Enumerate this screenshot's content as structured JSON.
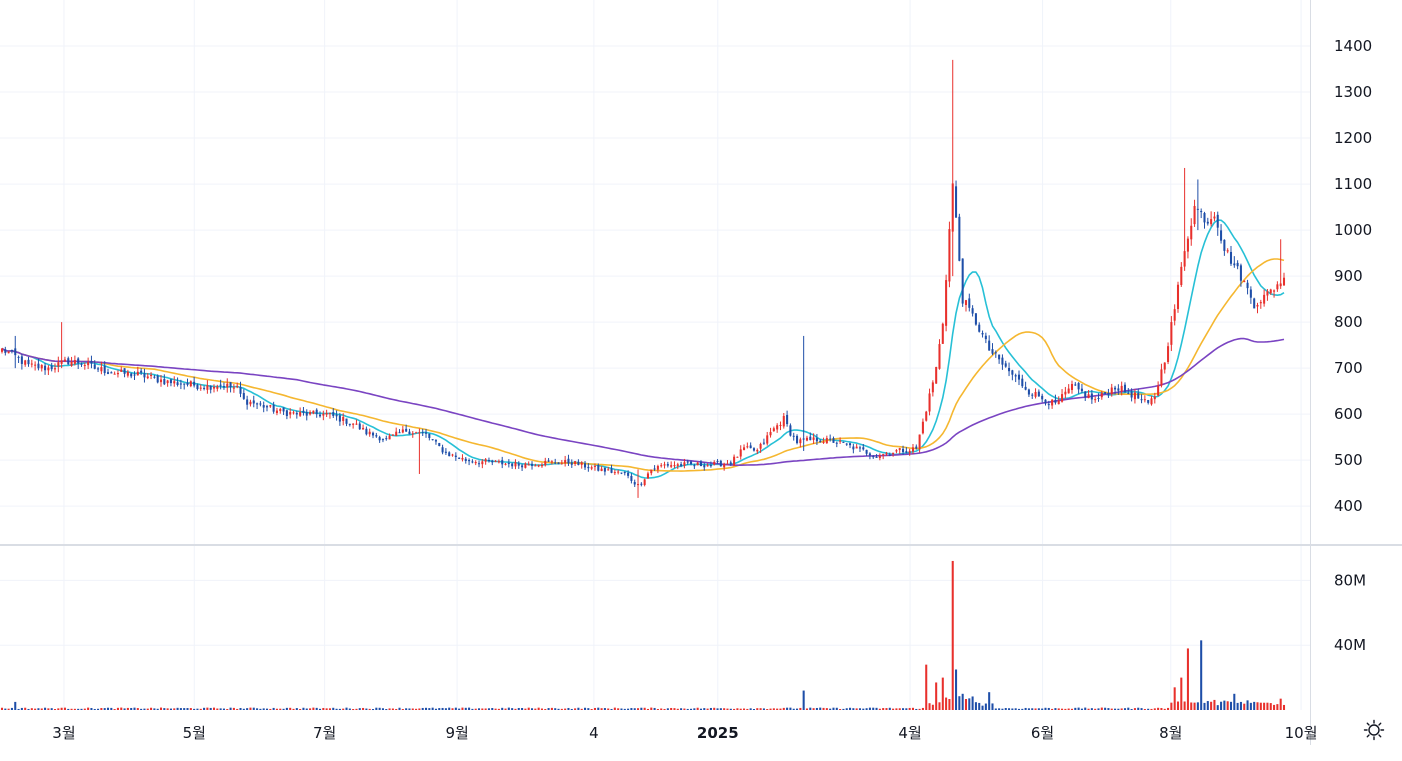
{
  "chart_data": {
    "type": "candlestick",
    "colors": {
      "up": "#e8302c",
      "down": "#1e4ea8",
      "ma_short": "#27c0d6",
      "ma_mid": "#f5b730",
      "ma_long": "#7a44c2",
      "grid": "#f0f3fa",
      "separator": "#d9dde4"
    },
    "price_axis": {
      "ylim": [
        320,
        1500
      ],
      "ticks": [
        400,
        500,
        600,
        700,
        800,
        900,
        1000,
        1100,
        1200,
        1300,
        1400
      ]
    },
    "volume_axis": {
      "ylim": [
        0,
        100000000
      ],
      "ticks": [
        {
          "value": 40000000,
          "label": "40M"
        },
        {
          "value": 80000000,
          "label": "80M"
        }
      ]
    },
    "x_axis": {
      "labels": [
        {
          "text": "3월",
          "bold": false,
          "date": "2024-03-01"
        },
        {
          "text": "5월",
          "bold": false,
          "date": "2024-05-01"
        },
        {
          "text": "7월",
          "bold": false,
          "date": "2024-07-01"
        },
        {
          "text": "9월",
          "bold": false,
          "date": "2024-09-01"
        },
        {
          "text": "4",
          "bold": false,
          "date": "2024-11-04"
        },
        {
          "text": "2025",
          "bold": true,
          "date": "2025-01-01"
        },
        {
          "text": "4월",
          "bold": false,
          "date": "2025-04-01"
        },
        {
          "text": "6월",
          "bold": false,
          "date": "2025-06-02"
        },
        {
          "text": "8월",
          "bold": false,
          "date": "2025-08-01"
        },
        {
          "text": "10월",
          "bold": false,
          "date": "2025-10-01"
        }
      ]
    },
    "price_anchors": [
      [
        0,
        740
      ],
      [
        3,
        730
      ],
      [
        8,
        705
      ],
      [
        14,
        700
      ],
      [
        20,
        715
      ],
      [
        24,
        712
      ],
      [
        28,
        700
      ],
      [
        34,
        690
      ],
      [
        42,
        685
      ],
      [
        50,
        670
      ],
      [
        56,
        665
      ],
      [
        62,
        660
      ],
      [
        66,
        665
      ],
      [
        71,
        655
      ],
      [
        73,
        630
      ],
      [
        78,
        620
      ],
      [
        84,
        605
      ],
      [
        90,
        600
      ],
      [
        98,
        600
      ],
      [
        106,
        580
      ],
      [
        110,
        560
      ],
      [
        116,
        545
      ],
      [
        122,
        565
      ],
      [
        128,
        555
      ],
      [
        134,
        515
      ],
      [
        140,
        500
      ],
      [
        148,
        495
      ],
      [
        156,
        490
      ],
      [
        164,
        495
      ],
      [
        172,
        495
      ],
      [
        180,
        480
      ],
      [
        188,
        470
      ],
      [
        192,
        445
      ],
      [
        196,
        480
      ],
      [
        200,
        490
      ],
      [
        208,
        490
      ],
      [
        214,
        490
      ],
      [
        220,
        495
      ],
      [
        224,
        525
      ],
      [
        228,
        520
      ],
      [
        232,
        560
      ],
      [
        236,
        590
      ],
      [
        238,
        560
      ],
      [
        240,
        540
      ],
      [
        246,
        545
      ],
      [
        252,
        540
      ],
      [
        258,
        525
      ],
      [
        264,
        510
      ],
      [
        270,
        520
      ],
      [
        276,
        525
      ],
      [
        280,
        640
      ],
      [
        282,
        700
      ],
      [
        284,
        800
      ],
      [
        287,
        1100
      ],
      [
        288,
        1020
      ],
      [
        290,
        850
      ],
      [
        294,
        800
      ],
      [
        298,
        740
      ],
      [
        303,
        700
      ],
      [
        310,
        650
      ],
      [
        318,
        620
      ],
      [
        323,
        660
      ],
      [
        330,
        630
      ],
      [
        336,
        660
      ],
      [
        342,
        640
      ],
      [
        346,
        620
      ],
      [
        348,
        640
      ],
      [
        351,
        720
      ],
      [
        354,
        830
      ],
      [
        357,
        960
      ],
      [
        360,
        1050
      ],
      [
        364,
        1020
      ],
      [
        366,
        1040
      ],
      [
        369,
        960
      ],
      [
        374,
        900
      ],
      [
        378,
        840
      ],
      [
        382,
        860
      ],
      [
        386,
        890
      ]
    ],
    "spikes": [
      {
        "index": 4,
        "high": 770,
        "low": 700
      },
      {
        "index": 18,
        "high": 800,
        "low": 700
      },
      {
        "index": 126,
        "high": 560,
        "low": 470
      },
      {
        "index": 192,
        "high": 480,
        "low": 418
      },
      {
        "index": 242,
        "high": 770,
        "low": 520
      },
      {
        "index": 287,
        "high": 1370,
        "low": 900
      },
      {
        "index": 357,
        "high": 1135,
        "low": 980
      },
      {
        "index": 361,
        "high": 1110,
        "low": 1000
      },
      {
        "index": 386,
        "high": 980,
        "low": 880
      }
    ],
    "volume_spikes": [
      {
        "index": 4,
        "value": 5000000
      },
      {
        "index": 242,
        "value": 12000000
      },
      {
        "index": 279,
        "value": 28000000
      },
      {
        "index": 282,
        "value": 17000000
      },
      {
        "index": 284,
        "value": 20000000
      },
      {
        "index": 287,
        "value": 92000000
      },
      {
        "index": 288,
        "value": 25000000
      },
      {
        "index": 290,
        "value": 10000000
      },
      {
        "index": 298,
        "value": 11000000
      },
      {
        "index": 354,
        "value": 14000000
      },
      {
        "index": 356,
        "value": 20000000
      },
      {
        "index": 358,
        "value": 38000000
      },
      {
        "index": 362,
        "value": 43000000
      },
      {
        "index": 372,
        "value": 10000000
      },
      {
        "index": 386,
        "value": 7000000
      }
    ],
    "moving_averages": [
      {
        "period": 10,
        "color_key": "ma_short"
      },
      {
        "period": 30,
        "color_key": "ma_mid"
      },
      {
        "period": 90,
        "color_key": "ma_long"
      }
    ],
    "bar_count": 388
  },
  "icons": {
    "settings": "gear-icon"
  }
}
